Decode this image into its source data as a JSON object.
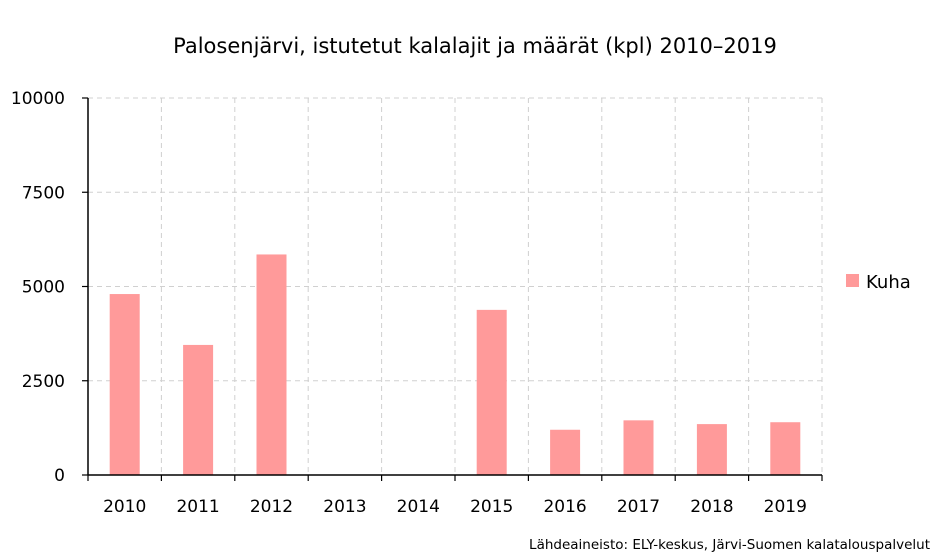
{
  "chart_data": {
    "type": "bar",
    "title": "Palosenjärvi, istutetut kalalajit ja määrät (kpl) 2010–2019",
    "xlabel": "",
    "ylabel": "",
    "categories": [
      "2010",
      "2011",
      "2012",
      "2013",
      "2014",
      "2015",
      "2016",
      "2017",
      "2018",
      "2019"
    ],
    "series": [
      {
        "name": "Kuha",
        "color": "#ff9a9a",
        "values": [
          4800,
          3450,
          5850,
          0,
          0,
          4380,
          1200,
          1450,
          1350,
          1400
        ]
      }
    ],
    "ylim": [
      0,
      10000
    ],
    "yticks": [
      "0",
      "2500",
      "5000",
      "7500",
      "10000"
    ],
    "grid": true,
    "legend_position": "right",
    "source": "Lähdeaineisto: ELY-keskus, Järvi-Suomen kalatalouspalvelut"
  }
}
